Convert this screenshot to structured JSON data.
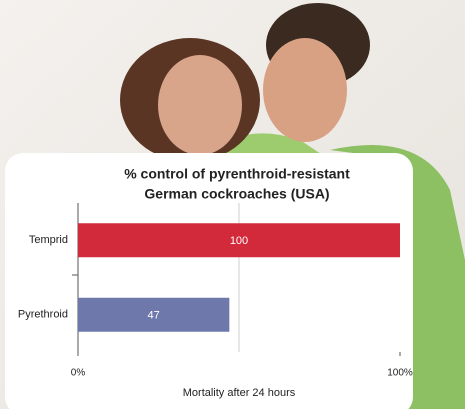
{
  "chart_data": {
    "type": "bar",
    "orientation": "horizontal",
    "title": [
      "% control of pyrenthroid-resistant",
      "German cockroaches (USA)"
    ],
    "categories": [
      "Temprid",
      "Pyrethroid"
    ],
    "values": [
      100,
      47
    ],
    "colors": [
      "#d32a3b",
      "#6f78aa"
    ],
    "xlim": [
      0,
      100
    ],
    "xticks": [
      {
        "value": 0,
        "label": "0%"
      },
      {
        "value": 100,
        "label": "100%"
      }
    ],
    "xgrid": [
      50
    ],
    "xlabel": "Mortality after 24 hours"
  }
}
